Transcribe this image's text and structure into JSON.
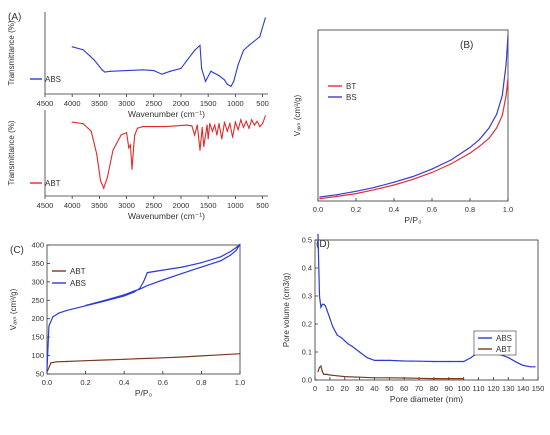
{
  "colors": {
    "abs_blue": "#2b3bd6",
    "abt_red": "#e32a2a",
    "bt_red": "#e0303a",
    "bs_blue": "#3a3ad0",
    "abt_brown": "#7a3b1f",
    "axis": "#333333"
  },
  "chart_data": [
    {
      "id": "A",
      "panel_label": "(A)",
      "type": "line",
      "xlabel": "Wavenumber (cm⁻¹)",
      "ylabel": "Transmittance (%)",
      "xlim": [
        4500,
        400
      ],
      "xticks": [
        4500,
        4000,
        3500,
        3000,
        2500,
        2000,
        1500,
        1000,
        500
      ],
      "legend": "left",
      "series": [
        {
          "name": "ABS",
          "color": "#2b3bd6",
          "x": [
            4000,
            3800,
            3600,
            3450,
            3400,
            3300,
            3000,
            2700,
            2500,
            2350,
            2200,
            2000,
            1900,
            1750,
            1650,
            1620,
            1550,
            1450,
            1400,
            1300,
            1200,
            1150,
            1080,
            1030,
            950,
            850,
            750,
            650,
            550,
            450
          ],
          "values": [
            0.6,
            0.56,
            0.42,
            0.28,
            0.25,
            0.26,
            0.27,
            0.28,
            0.27,
            0.22,
            0.26,
            0.3,
            0.4,
            0.55,
            0.62,
            0.3,
            0.12,
            0.26,
            0.24,
            0.2,
            0.14,
            0.08,
            0.05,
            0.12,
            0.35,
            0.55,
            0.62,
            0.68,
            0.74,
            1.0
          ]
        },
        {
          "name": "ABT",
          "color": "#e32a2a",
          "x": [
            4000,
            3800,
            3650,
            3550,
            3480,
            3420,
            3350,
            3250,
            3100,
            3000,
            2960,
            2930,
            2900,
            2870,
            2850,
            2800,
            2700,
            2500,
            2300,
            2100,
            1900,
            1800,
            1750,
            1700,
            1650,
            1610,
            1580,
            1520,
            1500,
            1470,
            1420,
            1380,
            1340,
            1300,
            1250,
            1200,
            1150,
            1100,
            1050,
            1000,
            950,
            900,
            850,
            800,
            750,
            700,
            650,
            600,
            550,
            500,
            450
          ],
          "values": [
            0.92,
            0.9,
            0.8,
            0.5,
            0.15,
            0.05,
            0.2,
            0.55,
            0.75,
            0.78,
            0.58,
            0.62,
            0.3,
            0.6,
            0.75,
            0.84,
            0.86,
            0.86,
            0.86,
            0.87,
            0.88,
            0.87,
            0.75,
            0.88,
            0.55,
            0.85,
            0.6,
            0.88,
            0.7,
            0.9,
            0.8,
            0.88,
            0.75,
            0.9,
            0.7,
            0.92,
            0.8,
            0.9,
            0.72,
            0.92,
            0.82,
            0.95,
            0.85,
            0.93,
            0.84,
            0.95,
            0.88,
            0.93,
            0.86,
            0.9,
            1.0
          ]
        }
      ]
    },
    {
      "id": "B",
      "panel_label": "(B)",
      "type": "line",
      "xlabel": "P/P₀",
      "ylabel": "Vₐₓₛ (cm³/g)",
      "xlim": [
        0.0,
        1.0
      ],
      "ylim": [
        0,
        30
      ],
      "xticks": [
        0.0,
        0.2,
        0.4,
        0.6,
        0.8,
        1.0
      ],
      "legend": "top-left",
      "series": [
        {
          "name": "BT",
          "color": "#e0303a",
          "x": [
            0.01,
            0.1,
            0.2,
            0.3,
            0.4,
            0.5,
            0.6,
            0.7,
            0.8,
            0.85,
            0.9,
            0.94,
            0.97,
            0.99,
            1.0
          ],
          "values": [
            0.4,
            0.8,
            1.3,
            2.0,
            2.8,
            3.8,
            5.0,
            6.5,
            8.4,
            9.6,
            11.0,
            12.8,
            15.0,
            18.5,
            21.5
          ]
        },
        {
          "name": "BS",
          "color": "#3a3ad0",
          "x": [
            0.01,
            0.1,
            0.2,
            0.3,
            0.4,
            0.5,
            0.6,
            0.7,
            0.8,
            0.85,
            0.9,
            0.94,
            0.97,
            0.99,
            1.0
          ],
          "values": [
            0.7,
            1.1,
            1.7,
            2.4,
            3.3,
            4.3,
            5.6,
            7.2,
            9.4,
            10.8,
            12.8,
            15.2,
            18.5,
            24.0,
            29.0
          ]
        }
      ]
    },
    {
      "id": "C",
      "panel_label": "(C)",
      "type": "line",
      "xlabel": "P/P₀",
      "ylabel": "Vₐₓₛ (cm³/g)",
      "xlim": [
        0.0,
        1.0
      ],
      "ylim": [
        50,
        400
      ],
      "xticks": [
        0.0,
        0.2,
        0.4,
        0.6,
        0.8,
        1.0
      ],
      "yticks": [
        50,
        100,
        150,
        200,
        250,
        300,
        350,
        400
      ],
      "legend": "top-left",
      "series": [
        {
          "name": "ABT",
          "color": "#7a3b1f",
          "x": [
            0.0,
            0.02,
            0.05,
            0.1,
            0.2,
            0.3,
            0.4,
            0.5,
            0.6,
            0.7,
            0.8,
            0.9,
            1.0
          ],
          "values": [
            55,
            80,
            83,
            84,
            86,
            88,
            90,
            92,
            94,
            96,
            99,
            102,
            105
          ]
        },
        {
          "name": "ABS",
          "color": "#2b3bd6",
          "x": [
            0.0,
            0.01,
            0.03,
            0.06,
            0.1,
            0.2,
            0.3,
            0.4,
            0.45,
            0.48,
            0.5,
            0.52,
            0.6,
            0.7,
            0.8,
            0.9,
            0.95,
            0.98,
            1.0,
            0.98,
            0.95,
            0.9,
            0.8,
            0.7,
            0.6,
            0.52,
            0.5,
            0.48,
            0.45,
            0.4,
            0.3,
            0.2
          ],
          "values": [
            60,
            180,
            205,
            215,
            222,
            235,
            248,
            262,
            272,
            282,
            300,
            325,
            332,
            340,
            352,
            368,
            382,
            393,
            402,
            385,
            372,
            357,
            340,
            323,
            305,
            290,
            285,
            280,
            275,
            265,
            250,
            236
          ]
        }
      ]
    },
    {
      "id": "D",
      "panel_label": "(D)",
      "type": "line",
      "xlabel": "Pore diameter (nm)",
      "ylabel": "Pore volume (cm3/g)",
      "xlim": [
        0,
        150
      ],
      "ylim": [
        0.0,
        0.5
      ],
      "xticks": [
        0,
        10,
        20,
        30,
        40,
        50,
        60,
        70,
        80,
        90,
        100,
        110,
        120,
        130,
        140,
        150
      ],
      "yticks": [
        0.0,
        0.1,
        0.2,
        0.3,
        0.4,
        0.5
      ],
      "legend": "bottom-right",
      "series": [
        {
          "name": "ABS",
          "color": "#2b3bd6",
          "x": [
            2,
            3,
            4,
            5,
            6,
            7,
            8,
            10,
            12,
            15,
            18,
            20,
            22,
            25,
            30,
            35,
            40,
            45,
            50,
            60,
            70,
            80,
            90,
            100,
            105,
            110,
            115,
            120,
            125,
            130,
            135,
            140,
            145,
            148
          ],
          "values": [
            0.52,
            0.3,
            0.26,
            0.27,
            0.27,
            0.265,
            0.25,
            0.22,
            0.19,
            0.16,
            0.15,
            0.14,
            0.13,
            0.12,
            0.1,
            0.08,
            0.07,
            0.07,
            0.07,
            0.068,
            0.067,
            0.066,
            0.066,
            0.066,
            0.08,
            0.1,
            0.1,
            0.095,
            0.09,
            0.08,
            0.065,
            0.052,
            0.047,
            0.047
          ]
        },
        {
          "name": "ABT",
          "color": "#7a3b1f",
          "x": [
            2,
            3,
            4,
            5,
            6,
            8,
            10,
            15,
            20,
            30,
            40,
            50,
            60,
            70,
            80,
            90,
            100
          ],
          "values": [
            0.03,
            0.045,
            0.05,
            0.03,
            0.02,
            0.02,
            0.018,
            0.015,
            0.012,
            0.01,
            0.008,
            0.008,
            0.007,
            0.006,
            0.005,
            0.005,
            0.005
          ]
        }
      ]
    }
  ]
}
